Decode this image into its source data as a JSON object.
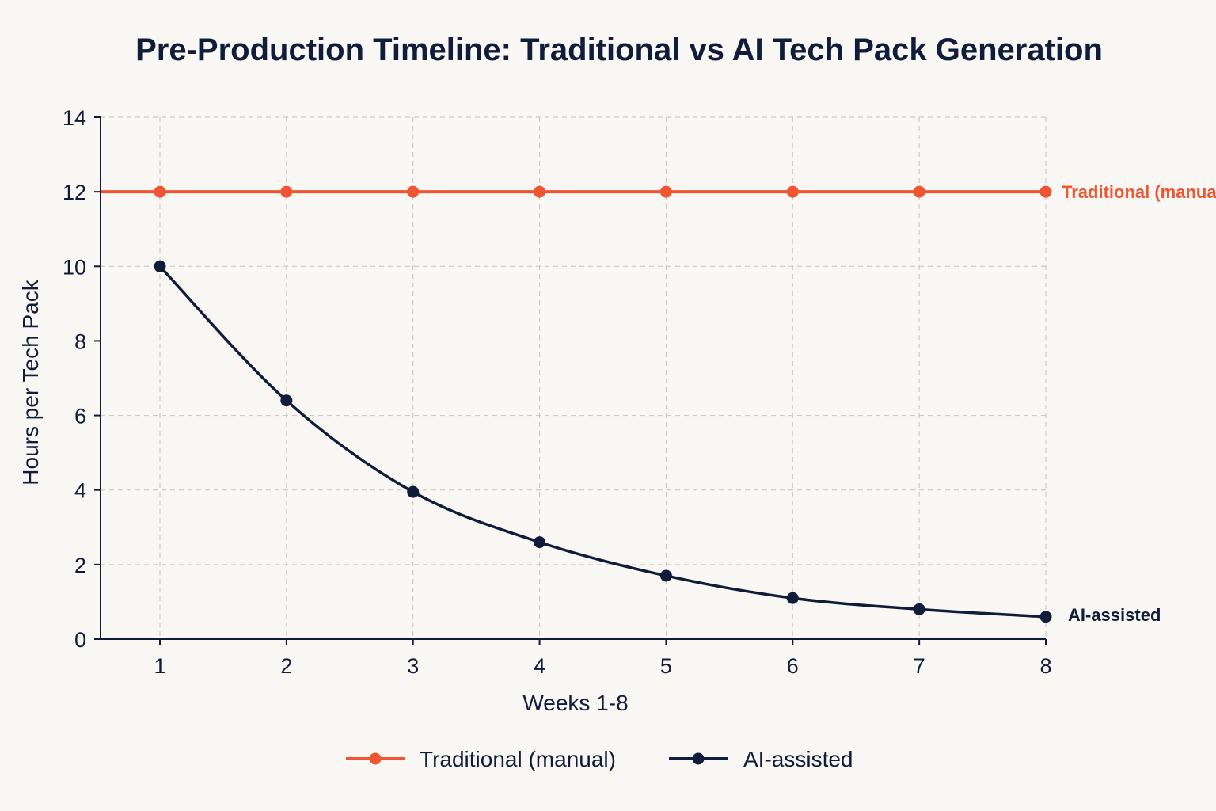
{
  "chart_data": {
    "type": "line",
    "title": "Pre-Production Timeline: Traditional vs AI Tech Pack Generation",
    "xlabel": "Weeks 1-8",
    "ylabel": "Hours per Tech Pack",
    "x": [
      1,
      2,
      3,
      4,
      5,
      6,
      7,
      8
    ],
    "xlim": [
      0.55,
      8
    ],
    "ylim": [
      0,
      14
    ],
    "yticks": [
      0,
      2,
      4,
      6,
      8,
      10,
      12,
      14
    ],
    "grid": true,
    "legend": "bottom-center",
    "series": [
      {
        "name": "Traditional (manual)",
        "color": "#ef5533",
        "values": [
          12,
          12,
          12,
          12,
          12,
          12,
          12,
          12
        ],
        "end_label": "Traditional (manual)"
      },
      {
        "name": "AI-assisted",
        "color": "#0f1c3a",
        "values": [
          10,
          6.4,
          3.95,
          2.6,
          1.7,
          1.1,
          0.8,
          0.6
        ],
        "end_label": "AI-assisted"
      }
    ]
  }
}
